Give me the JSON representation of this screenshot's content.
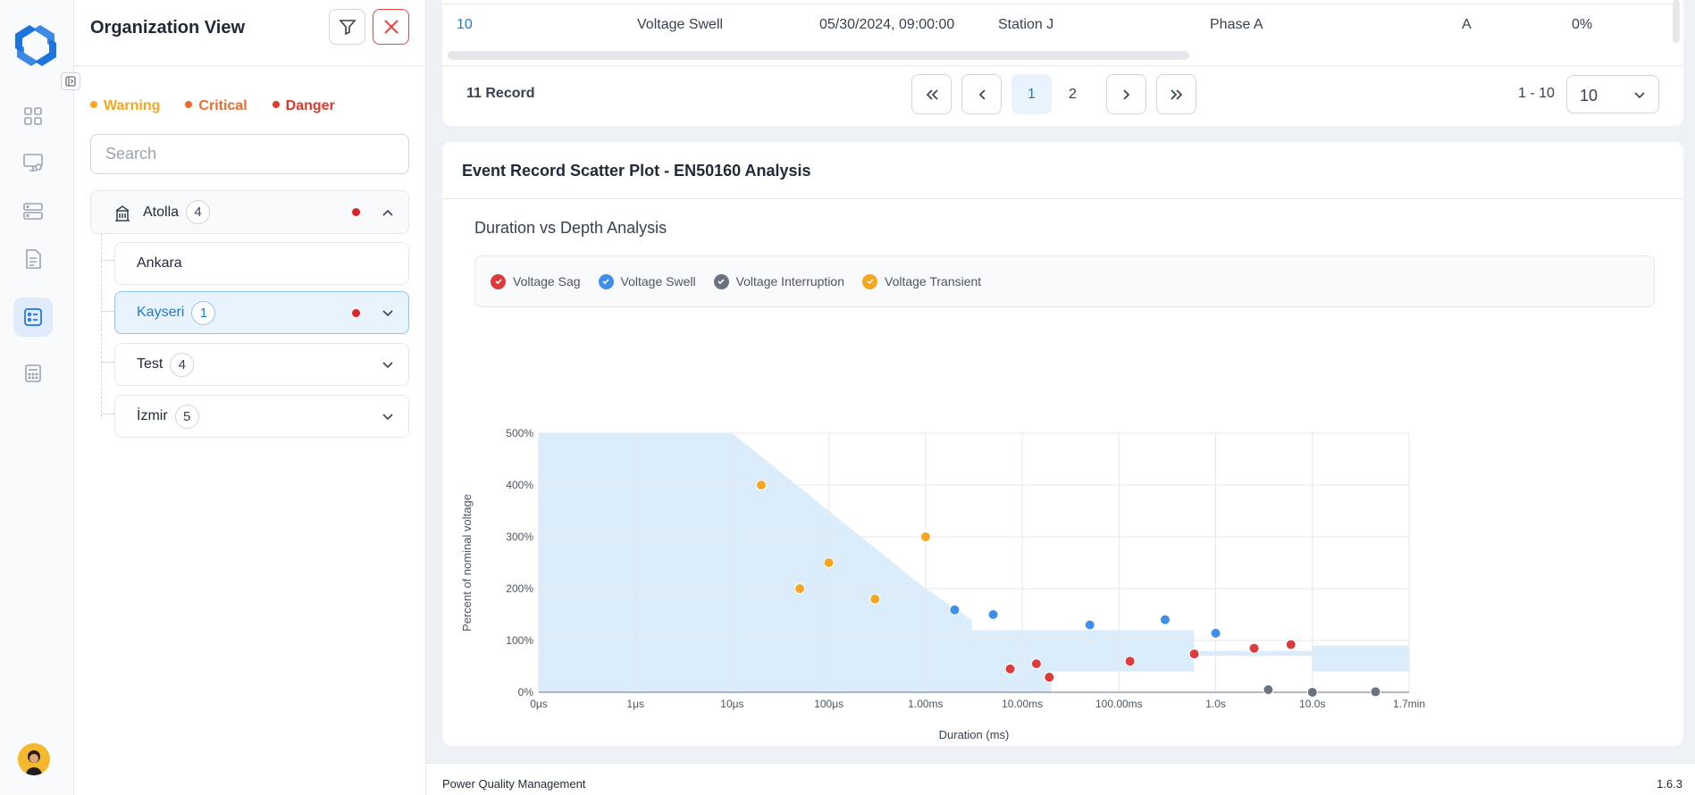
{
  "org": {
    "title": "Organization View",
    "legend": [
      {
        "label": "Warning",
        "color": "#f5a623"
      },
      {
        "label": "Critical",
        "color": "#f06a2d"
      },
      {
        "label": "Danger",
        "color": "#e0392b"
      }
    ],
    "search_placeholder": "Search",
    "root": {
      "label": "Atolla",
      "count": "4"
    },
    "children": [
      {
        "label": "Ankara",
        "count": ""
      },
      {
        "label": "Kayseri",
        "count": "1"
      },
      {
        "label": "Test",
        "count": "4"
      },
      {
        "label": "İzmir",
        "count": "5"
      }
    ]
  },
  "table": {
    "row": {
      "id": "10",
      "type": "Voltage Swell",
      "date": "05/30/2024, 09:00:00",
      "station": "Station J",
      "phase": "Phase A",
      "grade": "A",
      "percent": "0%"
    },
    "record_count": "11 Record",
    "pages": [
      "1",
      "2"
    ],
    "range": "1 - 10",
    "page_size": "10"
  },
  "chart_card": {
    "title": "Event Record Scatter Plot - EN50160 Analysis"
  },
  "chart_data": {
    "type": "scatter",
    "title": "Duration vs Depth Analysis",
    "xlabel": "Duration (ms)",
    "ylabel": "Percent of nominal voltage",
    "x_tick_labels": [
      "0μs",
      "1μs",
      "10μs",
      "100μs",
      "1.00ms",
      "10.00ms",
      "100.00ms",
      "1.0s",
      "10.0s",
      "1.7min"
    ],
    "x_tick_values_ms": [
      0.0001,
      0.001,
      0.01,
      0.1,
      1,
      10,
      100,
      1000,
      10000,
      100000
    ],
    "x_scale": "log",
    "y_tick_labels": [
      "0%",
      "100%",
      "200%",
      "300%",
      "400%",
      "500%"
    ],
    "ylim": [
      0,
      500
    ],
    "grid": true,
    "legend_position": "top",
    "series": [
      {
        "name": "Voltage Sag",
        "color": "#dc3b3b",
        "points": [
          [
            7.5,
            45
          ],
          [
            14,
            55
          ],
          [
            19,
            29
          ],
          [
            130,
            60
          ],
          [
            600,
            74
          ],
          [
            2500,
            85
          ],
          [
            6000,
            92
          ]
        ]
      },
      {
        "name": "Voltage Swell",
        "color": "#3f8fe8",
        "points": [
          [
            2,
            159
          ],
          [
            5,
            150
          ],
          [
            50,
            130
          ],
          [
            300,
            140
          ],
          [
            1000,
            114
          ]
        ]
      },
      {
        "name": "Voltage Interruption",
        "color": "#6b7280",
        "points": [
          [
            3500,
            5
          ],
          [
            10000,
            0
          ],
          [
            45000,
            1
          ]
        ]
      },
      {
        "name": "Voltage Transient",
        "color": "#f5a623",
        "points": [
          [
            0.02,
            400
          ],
          [
            0.05,
            200
          ],
          [
            0.1,
            250
          ],
          [
            0.3,
            180
          ],
          [
            1,
            300
          ]
        ]
      }
    ]
  },
  "footer": {
    "app": "Power Quality Management",
    "version": "1.6.3"
  }
}
